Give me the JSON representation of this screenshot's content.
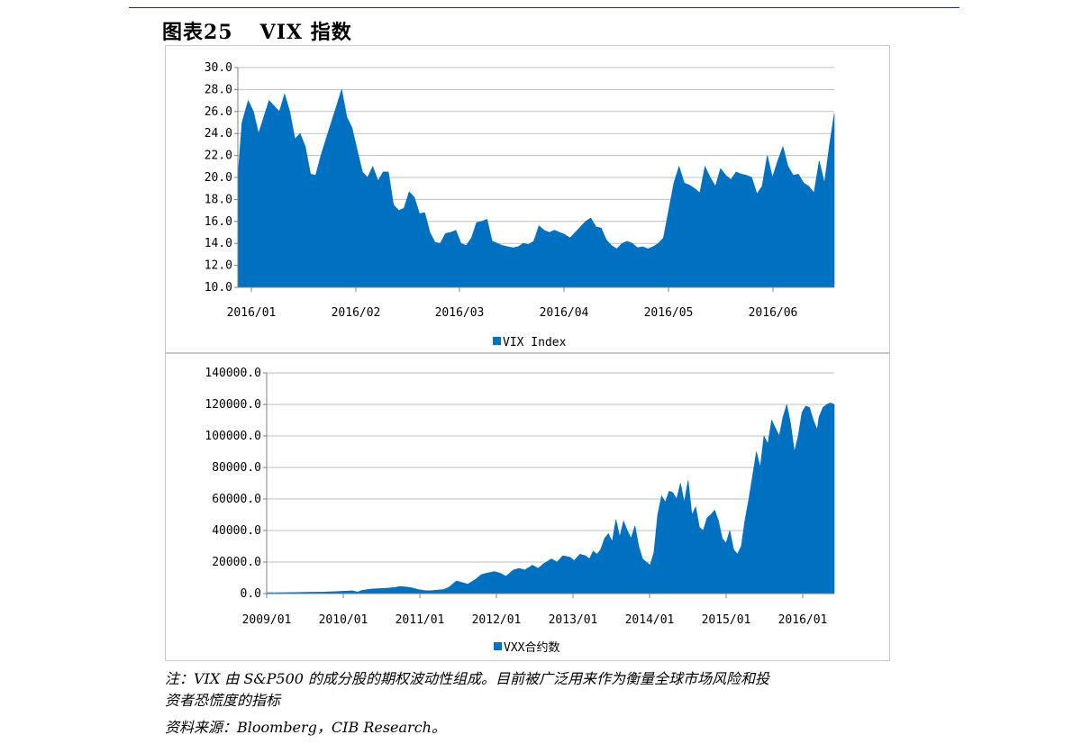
{
  "figure": {
    "label": "图表25",
    "title": "VIX 指数"
  },
  "notes": {
    "line1": "注：VIX 由 S&P500 的成分股的期权波动性组成。目前被广泛用来作为衡量全球市场风险和投",
    "line2": "资者恐慌度的指标",
    "source": "资料来源：Bloomberg，CIB Research。"
  },
  "colors": {
    "series": "#0070c0",
    "grid": "#bfbfbf",
    "axis": "#808080"
  },
  "chart_data": [
    {
      "type": "area",
      "series": [
        {
          "name": "VIX Index",
          "x": [
            0,
            0.8,
            2,
            3,
            4,
            5,
            6,
            7,
            8,
            9,
            10,
            11,
            12,
            13,
            14,
            15,
            16,
            17,
            18,
            19,
            20,
            21,
            22,
            23,
            24,
            25,
            26,
            27,
            28,
            29,
            30,
            31,
            32,
            33,
            34,
            35,
            36,
            37,
            38,
            39,
            40,
            41,
            42,
            43,
            44,
            45,
            46,
            47,
            48,
            49,
            50,
            51,
            52,
            53,
            54,
            55,
            56,
            57,
            58,
            59,
            60,
            61,
            62,
            63,
            64,
            65,
            66,
            67,
            68,
            69,
            70,
            71,
            72,
            73,
            74,
            75,
            76,
            77,
            78,
            79,
            80,
            81,
            82,
            83,
            84,
            85,
            86,
            87,
            88,
            89,
            90,
            91,
            92,
            93,
            94,
            95,
            96,
            97,
            98,
            99,
            100,
            101,
            102,
            103,
            104,
            105,
            106,
            107,
            108,
            109,
            110,
            111,
            112,
            113,
            114,
            114.9
          ],
          "values": [
            20.0,
            25.0,
            27.0,
            26.0,
            24.0,
            25.5,
            27.0,
            26.5,
            26.0,
            27.6,
            26.0,
            23.5,
            24.0,
            22.8,
            20.3,
            20.2,
            22.0,
            23.5,
            25.0,
            26.5,
            28.0,
            25.5,
            24.5,
            22.5,
            20.5,
            20.0,
            21.0,
            19.7,
            20.5,
            20.5,
            17.5,
            17.0,
            17.2,
            18.7,
            18.2,
            16.7,
            16.8,
            15.0,
            14.1,
            14.0,
            14.9,
            15.0,
            15.2,
            14.0,
            13.8,
            14.5,
            15.9,
            16.0,
            16.2,
            14.2,
            14.0,
            13.8,
            13.7,
            13.6,
            13.7,
            14.0,
            13.9,
            14.2,
            15.6,
            15.2,
            15.0,
            15.2,
            15.0,
            14.8,
            14.5,
            15.0,
            15.5,
            16.0,
            16.3,
            15.5,
            15.4,
            14.3,
            13.8,
            13.5,
            14.0,
            14.2,
            14.0,
            13.6,
            13.7,
            13.5,
            13.7,
            14.0,
            14.5,
            17.0,
            19.5,
            21.0,
            19.5,
            19.3,
            19.0,
            18.6,
            21.0,
            20.0,
            19.2,
            20.8,
            20.2,
            19.8,
            20.5,
            20.3,
            20.2,
            20.0,
            18.5,
            19.2,
            22.0,
            20.0,
            21.5,
            22.8,
            21.0,
            20.2,
            20.3,
            19.5,
            19.2,
            18.6,
            21.5,
            19.5,
            23.0,
            25.8
          ]
        }
      ],
      "x_ticks": [
        "2016/01",
        "2016/02",
        "2016/03",
        "2016/04",
        "2016/05",
        "2016/06"
      ],
      "y_ticks": [
        "10.0",
        "12.0",
        "14.0",
        "16.0",
        "18.0",
        "20.0",
        "22.0",
        "24.0",
        "26.0",
        "28.0",
        "30.0"
      ],
      "ylim": [
        10,
        30
      ],
      "xlim": [
        0,
        114.9
      ],
      "grid": "horizontal",
      "legend": "bottom-center"
    },
    {
      "type": "area",
      "series": [
        {
          "name": "VXX合约数",
          "x": [
            0,
            0.5,
            1,
            1.5,
            2,
            2.5,
            3,
            3.5,
            4,
            4.5,
            4.8,
            5,
            5.3,
            5.6,
            6,
            6.4,
            6.8,
            7,
            7.3,
            7.6,
            8,
            8.3,
            8.6,
            9,
            9.3,
            9.6,
            10,
            10.3,
            10.6,
            11,
            11.3,
            11.6,
            12,
            12.3,
            12.6,
            13,
            13.3,
            13.6,
            14,
            14.3,
            14.6,
            15,
            15.3,
            15.6,
            16,
            16.2,
            16.5,
            16.8,
            17,
            17.2,
            17.4,
            17.6,
            17.8,
            18,
            18.2,
            18.4,
            18.6,
            18.8,
            19,
            19.2,
            19.4,
            19.6,
            19.8,
            20,
            20.2,
            20.4,
            20.6,
            20.8,
            21,
            21.2,
            21.4,
            21.6,
            21.8,
            22,
            22.2,
            22.4,
            22.6,
            22.8,
            23,
            23.2,
            23.4,
            23.6,
            23.8,
            24,
            24.2,
            24.4,
            24.6,
            24.8,
            25,
            25.2,
            25.4,
            25.6,
            25.8,
            26,
            26.2,
            26.4,
            26.6,
            26.8,
            27,
            27.2,
            27.4,
            27.6,
            27.8,
            28,
            28.2,
            28.4,
            28.6,
            28.8,
            29,
            29.1,
            29.3,
            29.5,
            29.7,
            29.9
          ],
          "values": [
            500,
            500,
            600,
            700,
            800,
            900,
            1000,
            1200,
            1500,
            1800,
            1000,
            2000,
            2500,
            3000,
            3200,
            3500,
            4000,
            4500,
            4200,
            3800,
            2500,
            2000,
            1800,
            2200,
            2500,
            4000,
            8000,
            7000,
            6000,
            9000,
            12000,
            13000,
            14000,
            13000,
            11000,
            15000,
            16000,
            15000,
            18000,
            16000,
            19000,
            22000,
            20000,
            24000,
            23000,
            21000,
            25000,
            24000,
            22000,
            27000,
            25000,
            28000,
            35000,
            38000,
            33000,
            47000,
            36000,
            46000,
            40000,
            35000,
            43000,
            30000,
            22000,
            20000,
            18000,
            26000,
            50000,
            62000,
            58000,
            65000,
            64000,
            60000,
            70000,
            58000,
            72000,
            50000,
            55000,
            42000,
            40000,
            48000,
            50000,
            53000,
            46000,
            35000,
            32000,
            40000,
            28000,
            25000,
            30000,
            47000,
            60000,
            75000,
            90000,
            80000,
            100000,
            95000,
            110000,
            105000,
            100000,
            112000,
            120000,
            108000,
            90000,
            100000,
            115000,
            119000,
            118000,
            110000,
            104000,
            112000,
            118000,
            120000,
            121000,
            120000
          ],
          "values_note": "",
          "unused": null
        }
      ],
      "x_ticks": [
        "2009/01",
        "2010/01",
        "2011/01",
        "2012/01",
        "2013/01",
        "2014/01",
        "2015/01",
        "2016/01"
      ],
      "y_ticks": [
        "0.0",
        "20000.0",
        "40000.0",
        "60000.0",
        "80000.0",
        "100000.0",
        "120000.0",
        "140000.0"
      ],
      "ylim": [
        0,
        140000
      ],
      "xlim": [
        0,
        29.9
      ],
      "grid": "horizontal",
      "legend": "bottom-center"
    }
  ]
}
